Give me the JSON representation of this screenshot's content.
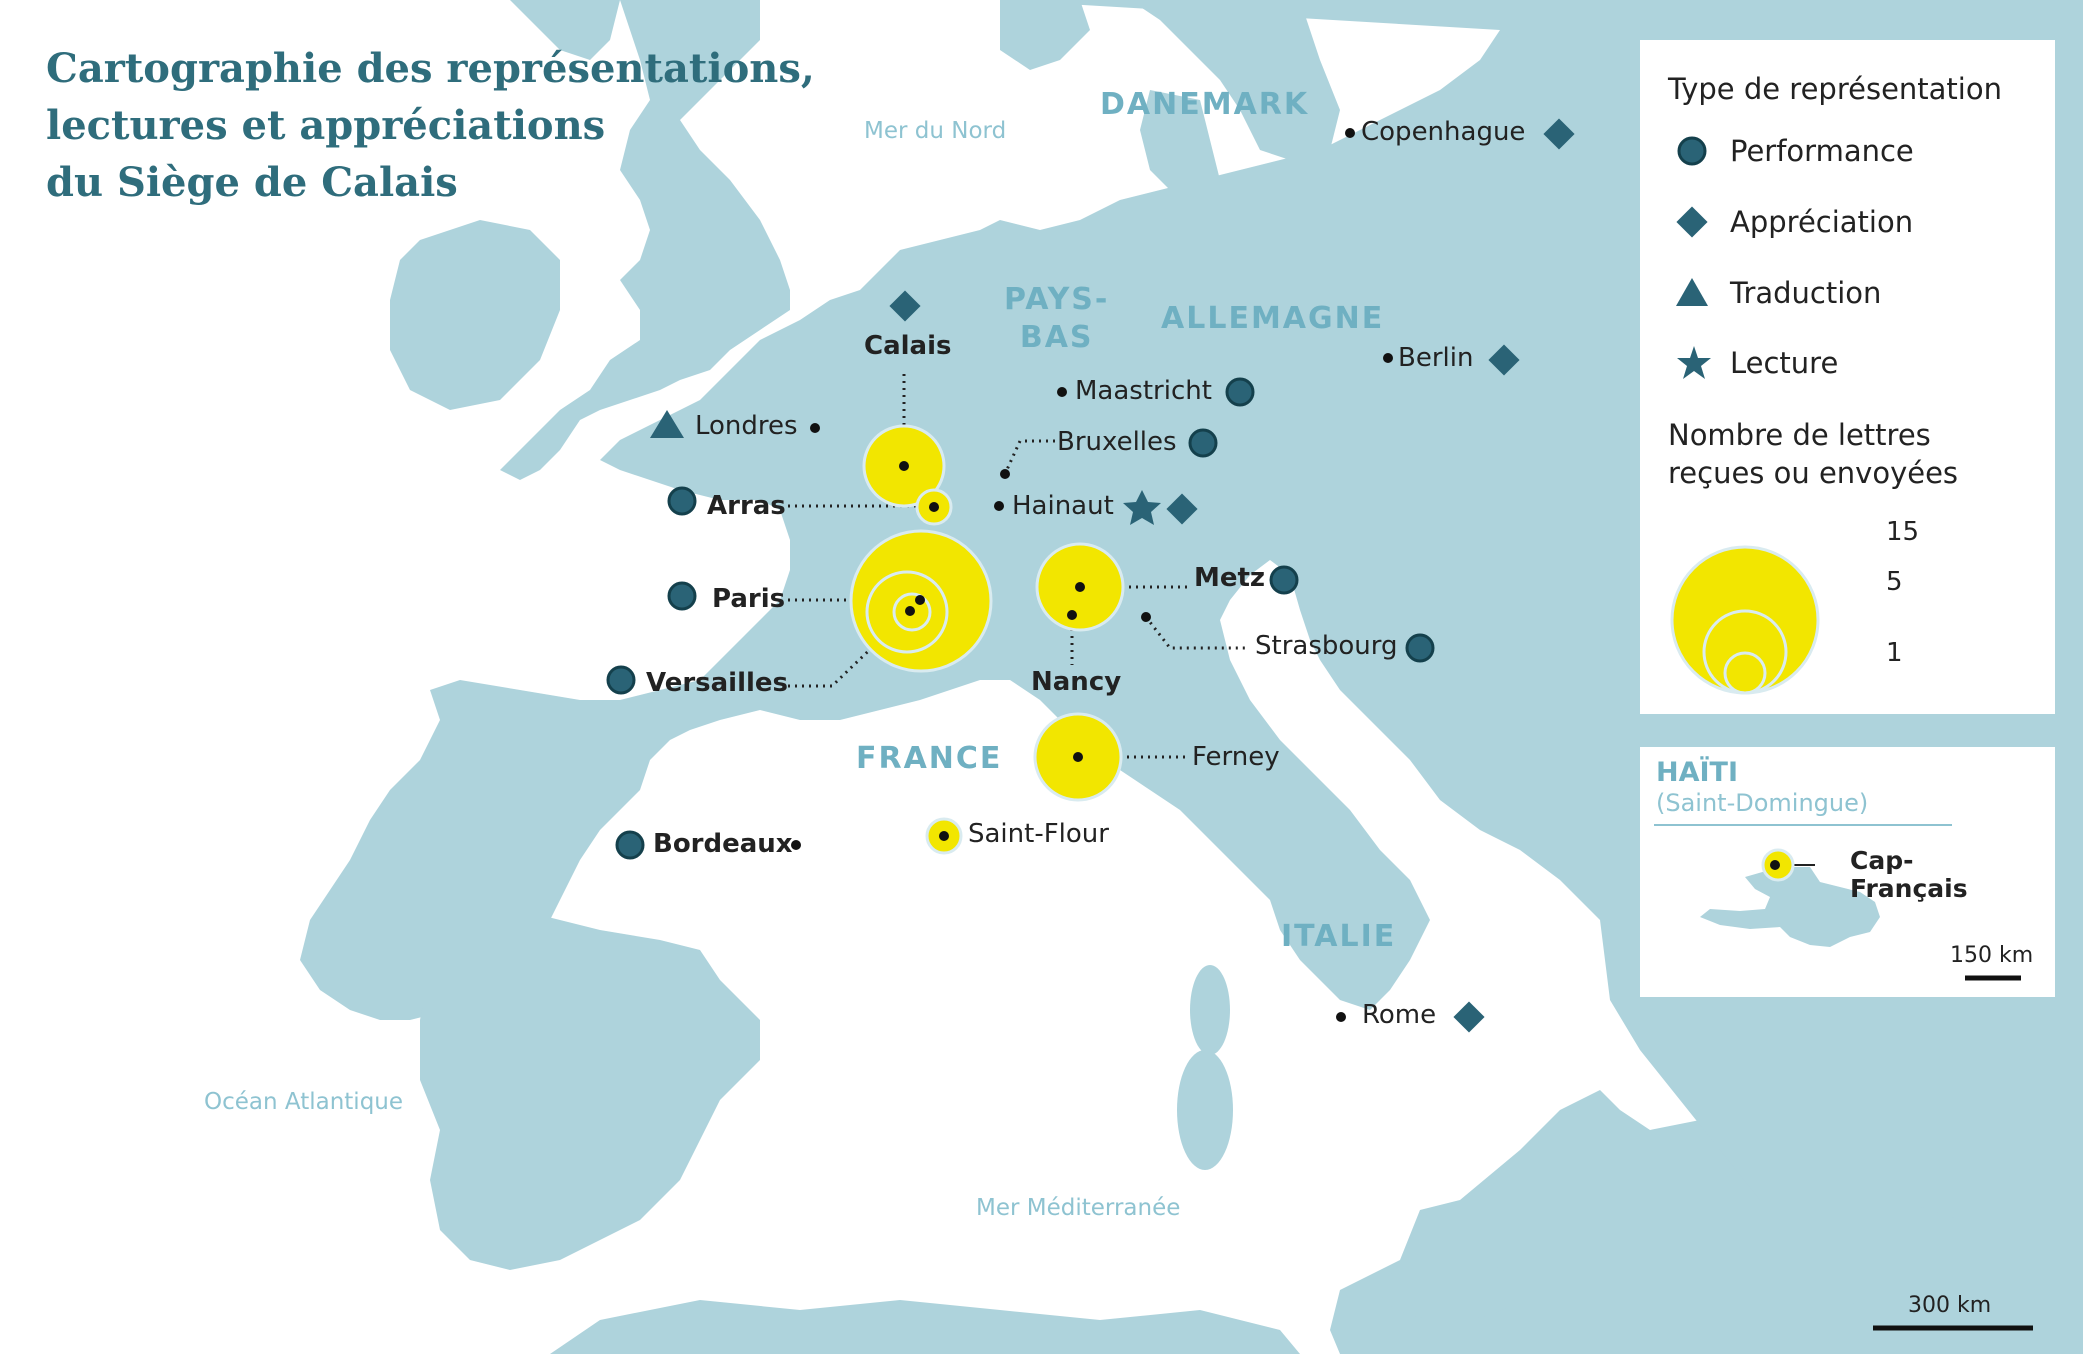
{
  "title": {
    "line1": "Cartographie des représentations,",
    "line2": "lectures et appréciations",
    "line3": "du Siège de Calais"
  },
  "seas": {
    "nord": "Mer du Nord",
    "atlantique": "Océan Atlantique",
    "mediterranee": "Mer Méditerranée"
  },
  "countries": {
    "danemark": "DANEMARK",
    "pays_bas_1": "PAYS-",
    "pays_bas_2": "BAS",
    "allemagne": "ALLEMAGNE",
    "france": "FRANCE",
    "italie": "ITALIE"
  },
  "cities": {
    "copenhague": "Copenhague",
    "calais": "Calais",
    "berlin": "Berlin",
    "londres": "Londres",
    "maastricht": "Maastricht",
    "bruxelles": "Bruxelles",
    "arras": "Arras",
    "hainaut": "Hainaut",
    "paris": "Paris",
    "metz": "Metz",
    "versailles": "Versailles",
    "nancy": "Nancy",
    "strasbourg": "Strasbourg",
    "ferney": "Ferney",
    "bordeaux": "Bordeaux",
    "saint_flour": "Saint-Flour",
    "rome": "Rome"
  },
  "legend": {
    "type_title": "Type de représentation",
    "performance": "Performance",
    "appreciation": "Appréciation",
    "traduction": "Traduction",
    "lecture": "Lecture",
    "size_title_1": "Nombre de lettres",
    "size_title_2": "reçues ou envoyées",
    "size_values": [
      "15",
      "5",
      "1"
    ]
  },
  "inset": {
    "title": "HAÏTI",
    "subtitle": "(Saint-Domingue)",
    "city_1": "Cap-",
    "city_2": "Français",
    "scale": "150 km"
  },
  "scale": "300 km",
  "colors": {
    "sea": "#ffffff",
    "land": "#aed3dc",
    "title": "#2f6d7c",
    "country_label": "#6fb0c2",
    "marker": "#2a6376",
    "bubble": "#f2e600"
  }
}
